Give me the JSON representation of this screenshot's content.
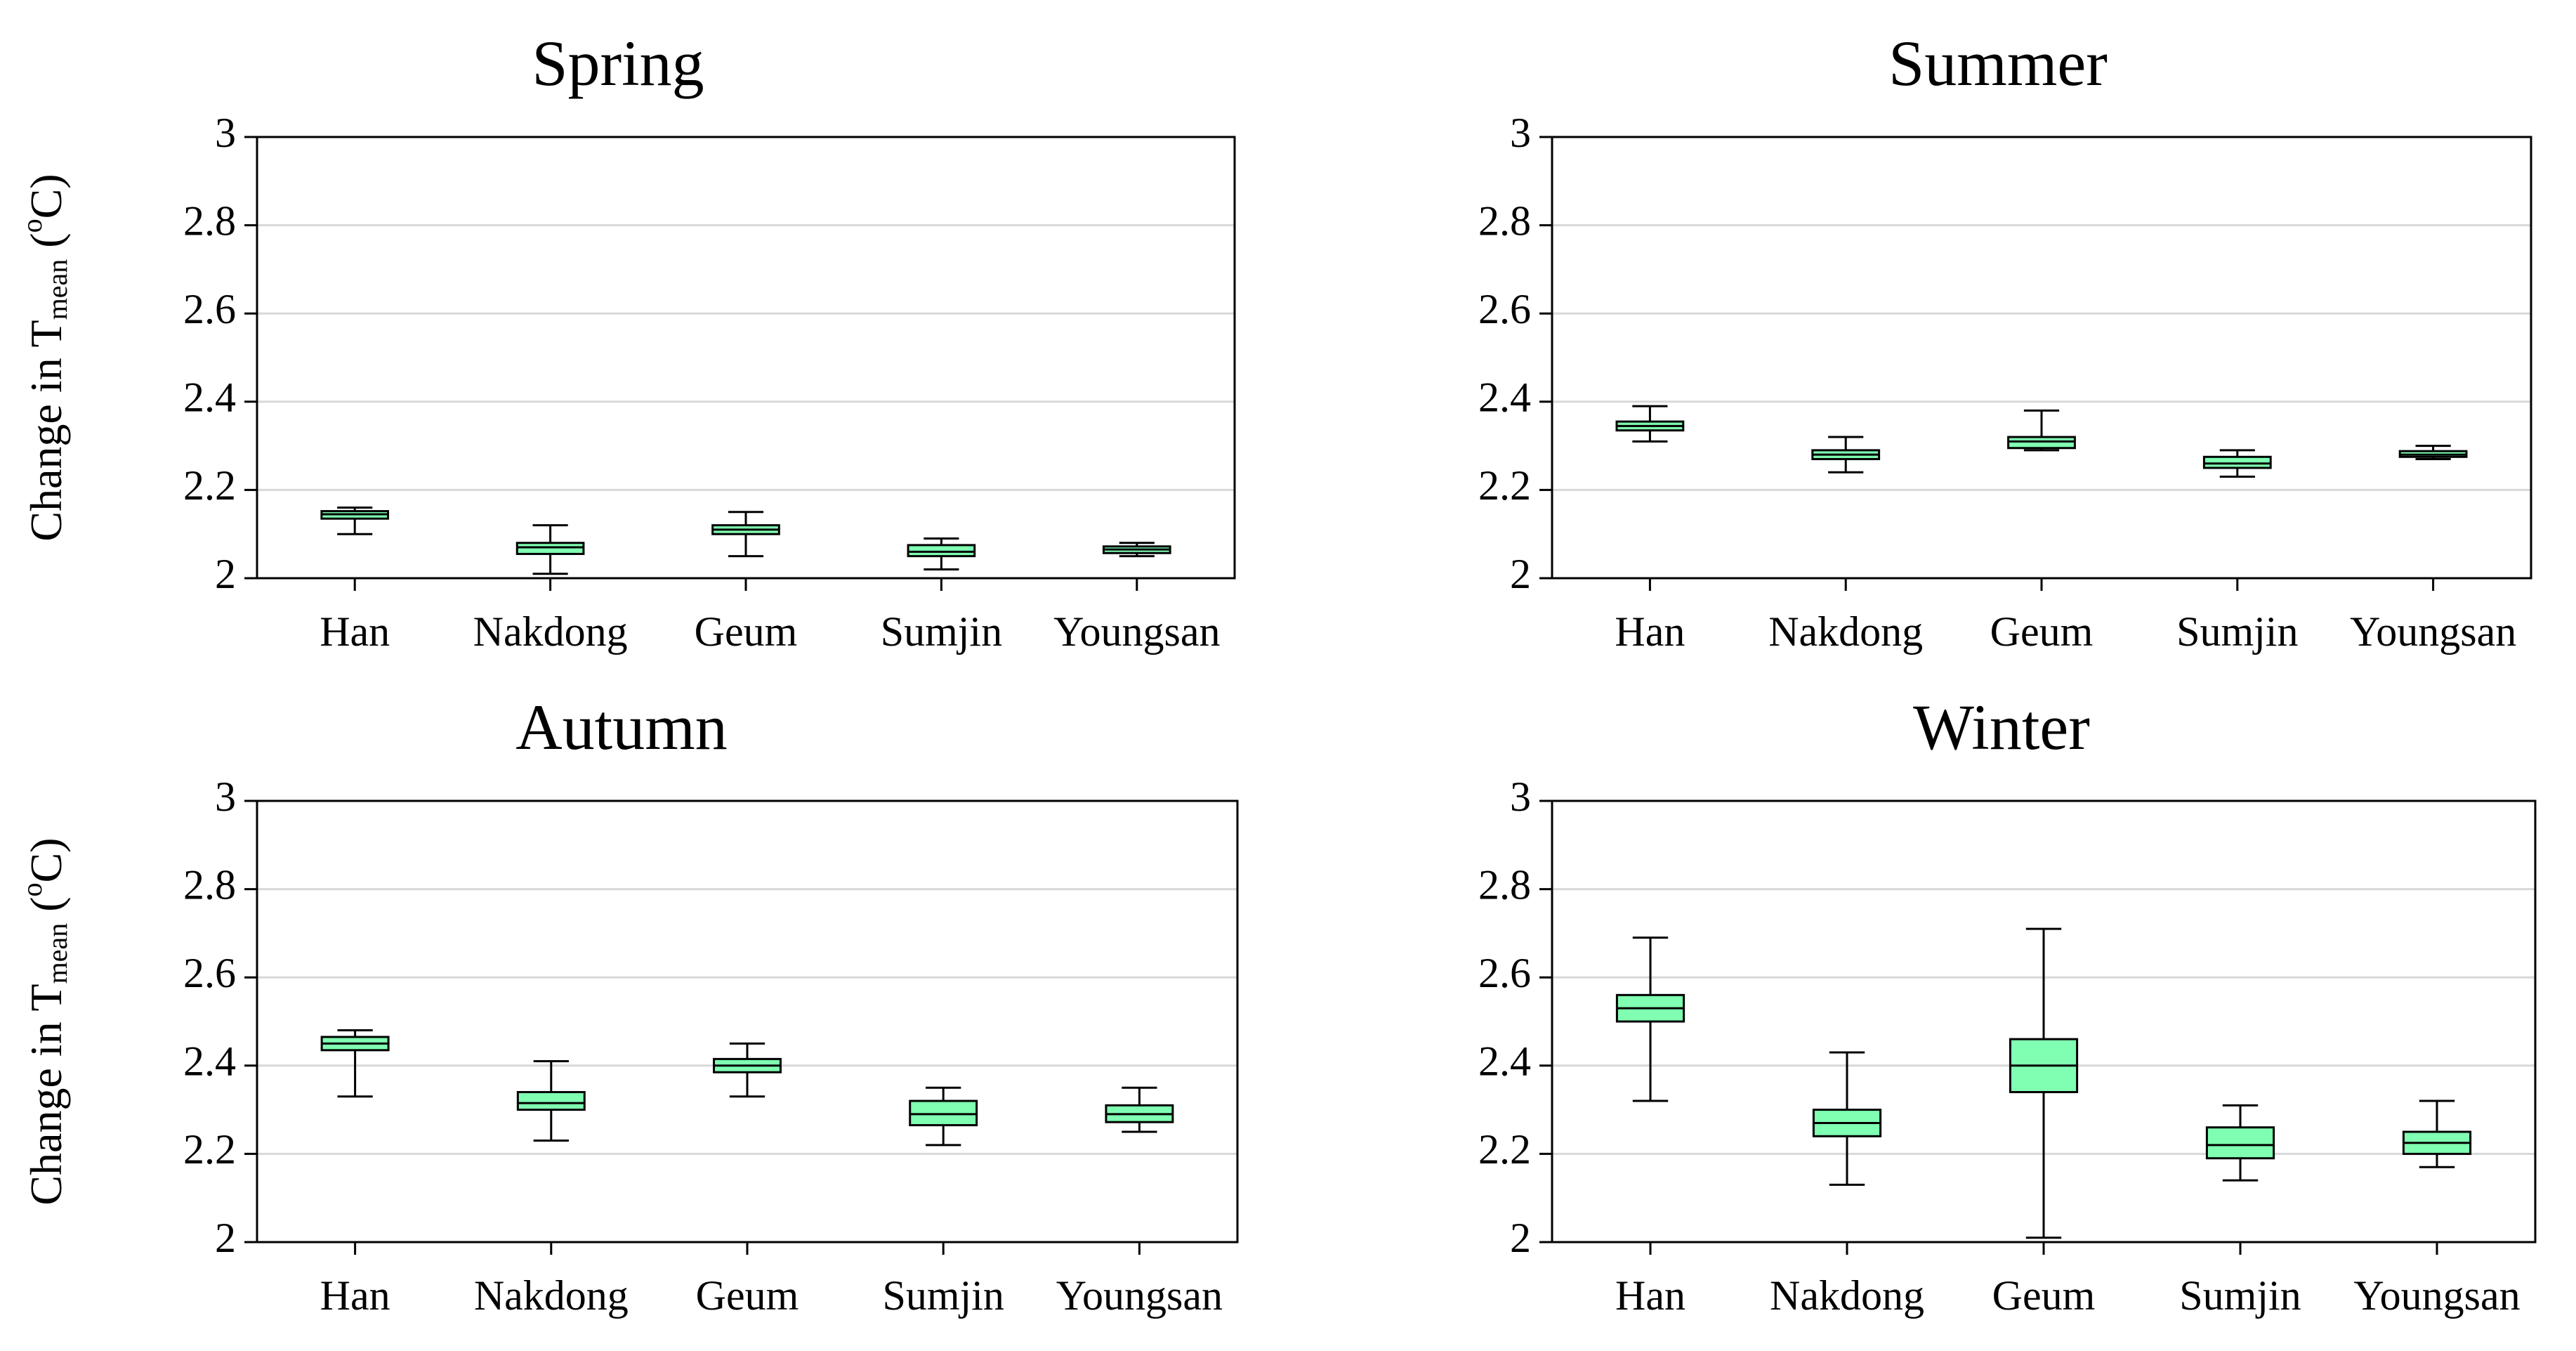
{
  "colors": {
    "box_fill": "#80FFB2",
    "box_stroke": "#000000",
    "grid": "#d8d8d8",
    "frame": "#000000"
  },
  "chart_data": [
    {
      "type": "boxplot",
      "title": "Spring",
      "xlabel": "",
      "ylabel": {
        "prefix": "Change in T",
        "subscript": "mean",
        "open": " (",
        "superscript": "o",
        "unit": "C)"
      },
      "ylim": [
        2,
        3
      ],
      "yticks": [
        2,
        2.2,
        2.4,
        2.6,
        2.8,
        3
      ],
      "ytick_labels": [
        "2",
        "2.2",
        "2.4",
        "2.6",
        "2.8",
        "3"
      ],
      "grid": true,
      "categories": [
        "Han",
        "Nakdong",
        "Geum",
        "Sumjin",
        "Youngsan"
      ],
      "boxes": [
        {
          "min": 2.1,
          "q1": 2.135,
          "median": 2.145,
          "q3": 2.152,
          "max": 2.16
        },
        {
          "min": 2.01,
          "q1": 2.055,
          "median": 2.07,
          "q3": 2.08,
          "max": 2.12
        },
        {
          "min": 2.05,
          "q1": 2.1,
          "median": 2.11,
          "q3": 2.12,
          "max": 2.15
        },
        {
          "min": 2.02,
          "q1": 2.05,
          "median": 2.06,
          "q3": 2.075,
          "max": 2.09
        },
        {
          "min": 2.05,
          "q1": 2.057,
          "median": 2.065,
          "q3": 2.072,
          "max": 2.08
        }
      ]
    },
    {
      "type": "boxplot",
      "title": "Summer",
      "xlabel": "",
      "ylabel": null,
      "ylim": [
        2,
        3
      ],
      "yticks": [
        2,
        2.2,
        2.4,
        2.6,
        2.8,
        3
      ],
      "ytick_labels": [
        "2",
        "2.2",
        "2.4",
        "2.6",
        "2.8",
        "3"
      ],
      "grid": true,
      "categories": [
        "Han",
        "Nakdong",
        "Geum",
        "Sumjin",
        "Youngsan"
      ],
      "boxes": [
        {
          "min": 2.31,
          "q1": 2.335,
          "median": 2.345,
          "q3": 2.355,
          "max": 2.39
        },
        {
          "min": 2.24,
          "q1": 2.27,
          "median": 2.28,
          "q3": 2.29,
          "max": 2.32
        },
        {
          "min": 2.29,
          "q1": 2.295,
          "median": 2.31,
          "q3": 2.32,
          "max": 2.38
        },
        {
          "min": 2.23,
          "q1": 2.25,
          "median": 2.26,
          "q3": 2.275,
          "max": 2.29
        },
        {
          "min": 2.27,
          "q1": 2.275,
          "median": 2.28,
          "q3": 2.288,
          "max": 2.3
        }
      ]
    },
    {
      "type": "boxplot",
      "title": "Autumn",
      "xlabel": "",
      "ylabel": {
        "prefix": "Change in T",
        "subscript": "mean",
        "open": " (",
        "superscript": "o",
        "unit": "C)"
      },
      "ylim": [
        2,
        3
      ],
      "yticks": [
        2,
        2.2,
        2.4,
        2.6,
        2.8,
        3
      ],
      "ytick_labels": [
        "2",
        "2.2",
        "2.4",
        "2.6",
        "2.8",
        "3"
      ],
      "grid": true,
      "categories": [
        "Han",
        "Nakdong",
        "Geum",
        "Sumjin",
        "Youngsan"
      ],
      "boxes": [
        {
          "min": 2.33,
          "q1": 2.435,
          "median": 2.45,
          "q3": 2.465,
          "max": 2.48
        },
        {
          "min": 2.23,
          "q1": 2.3,
          "median": 2.315,
          "q3": 2.34,
          "max": 2.41
        },
        {
          "min": 2.33,
          "q1": 2.385,
          "median": 2.4,
          "q3": 2.415,
          "max": 2.45
        },
        {
          "min": 2.22,
          "q1": 2.265,
          "median": 2.29,
          "q3": 2.32,
          "max": 2.35
        },
        {
          "min": 2.25,
          "q1": 2.272,
          "median": 2.29,
          "q3": 2.31,
          "max": 2.35
        }
      ]
    },
    {
      "type": "boxplot",
      "title": "Winter",
      "xlabel": "",
      "ylabel": null,
      "ylim": [
        2,
        3
      ],
      "yticks": [
        2,
        2.2,
        2.4,
        2.6,
        2.8,
        3
      ],
      "ytick_labels": [
        "2",
        "2.2",
        "2.4",
        "2.6",
        "2.8",
        "3"
      ],
      "grid": true,
      "categories": [
        "Han",
        "Nakdong",
        "Geum",
        "Sumjin",
        "Youngsan"
      ],
      "boxes": [
        {
          "min": 2.32,
          "q1": 2.5,
          "median": 2.53,
          "q3": 2.56,
          "max": 2.69
        },
        {
          "min": 2.13,
          "q1": 2.24,
          "median": 2.27,
          "q3": 2.3,
          "max": 2.43
        },
        {
          "min": 2.01,
          "q1": 2.34,
          "median": 2.4,
          "q3": 2.46,
          "max": 2.71
        },
        {
          "min": 2.14,
          "q1": 2.19,
          "median": 2.22,
          "q3": 2.26,
          "max": 2.31
        },
        {
          "min": 2.17,
          "q1": 2.2,
          "median": 2.225,
          "q3": 2.25,
          "max": 2.32
        }
      ]
    }
  ]
}
